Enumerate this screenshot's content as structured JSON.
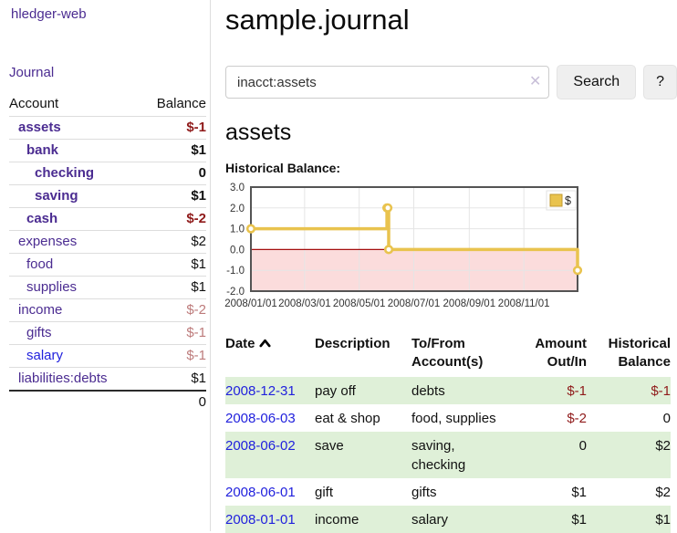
{
  "app": {
    "title": "hledger-web"
  },
  "sidebar": {
    "nav": [
      {
        "label": "Journal"
      }
    ],
    "table": {
      "headers": [
        "Account",
        "Balance"
      ],
      "rows": [
        {
          "name": "assets",
          "indent": 0,
          "bold": true,
          "name_color": "purple",
          "balance": "$-1",
          "tone": "neg"
        },
        {
          "name": "bank",
          "indent": 1,
          "bold": true,
          "name_color": "purple",
          "balance": "$1",
          "tone": ""
        },
        {
          "name": "checking",
          "indent": 2,
          "bold": true,
          "name_color": "purple",
          "balance": "0",
          "tone": ""
        },
        {
          "name": "saving",
          "indent": 2,
          "bold": true,
          "name_color": "purple",
          "balance": "$1",
          "tone": ""
        },
        {
          "name": "cash",
          "indent": 1,
          "bold": true,
          "name_color": "purple",
          "balance": "$-2",
          "tone": "neg"
        },
        {
          "name": "expenses",
          "indent": 0,
          "bold": false,
          "name_color": "purple",
          "balance": "$2",
          "tone": ""
        },
        {
          "name": "food",
          "indent": 1,
          "bold": false,
          "name_color": "purple",
          "balance": "$1",
          "tone": ""
        },
        {
          "name": "supplies",
          "indent": 1,
          "bold": false,
          "name_color": "purple",
          "balance": "$1",
          "tone": ""
        },
        {
          "name": "income",
          "indent": 0,
          "bold": false,
          "name_color": "purple",
          "balance": "$-2",
          "tone": "neg-faded"
        },
        {
          "name": "gifts",
          "indent": 1,
          "bold": false,
          "name_color": "purple",
          "balance": "$-1",
          "tone": "neg-faded"
        },
        {
          "name": "salary",
          "indent": 1,
          "bold": false,
          "name_color": "blue",
          "balance": "$-1",
          "tone": "neg-faded"
        },
        {
          "name": "liabilities:debts",
          "indent": 0,
          "bold": false,
          "name_color": "purple",
          "balance": "$1",
          "tone": ""
        }
      ],
      "total": "0"
    }
  },
  "main": {
    "title": "sample.journal",
    "search": {
      "value": "inacct:assets",
      "clear_icon": "✕",
      "button": "Search",
      "help_button": "?"
    },
    "section_title": "assets",
    "chart_label": "Historical Balance:"
  },
  "chart_data": {
    "type": "line",
    "title": "Historical Balance",
    "step": true,
    "series": [
      {
        "name": "$",
        "points": [
          [
            "2008-01-01",
            1
          ],
          [
            "2008-06-01",
            2
          ],
          [
            "2008-06-02",
            2
          ],
          [
            "2008-06-03",
            0
          ],
          [
            "2008-12-31",
            -1
          ]
        ]
      }
    ],
    "x_ticks": [
      "2008/01/01",
      "2008/03/01",
      "2008/05/01",
      "2008/07/01",
      "2008/09/01",
      "2008/11/01"
    ],
    "y_ticks": [
      "3.0",
      "2.0",
      "1.0",
      "0.0",
      "-1.0",
      "-2.0"
    ],
    "xlim": [
      "2008-01-01",
      "2008-12-31"
    ],
    "ylim": [
      -2,
      3
    ],
    "grid": true,
    "legend": {
      "label": "$",
      "position": "top-right"
    },
    "negative_region_shaded": true
  },
  "register_table": {
    "headers": [
      "Date",
      "Description",
      "To/From Account(s)",
      "Amount Out/In",
      "Historical Balance"
    ],
    "sort": {
      "column": "Date",
      "direction": "ascending"
    },
    "rows": [
      {
        "date": "2008-12-31",
        "description": "pay off",
        "accounts": "debts",
        "amount": "$-1",
        "balance": "$-1"
      },
      {
        "date": "2008-06-03",
        "description": "eat & shop",
        "accounts": "food, supplies",
        "amount": "$-2",
        "balance": "0"
      },
      {
        "date": "2008-06-02",
        "description": "save",
        "accounts": "saving, checking",
        "amount": "0",
        "balance": "$2"
      },
      {
        "date": "2008-06-01",
        "description": "gift",
        "accounts": "gifts",
        "amount": "$1",
        "balance": "$2"
      },
      {
        "date": "2008-01-01",
        "description": "income",
        "accounts": "salary",
        "amount": "$1",
        "balance": "$1"
      }
    ]
  },
  "colors": {
    "purple_link": "#4b2c91",
    "blue_link": "#2121dd",
    "negative": "#8f1a1a",
    "negative_faded": "#bd7b7b",
    "row_green": "#dff0d8",
    "chart_line": "#e9c34e",
    "chart_line_border": "#c19a2e",
    "chart_negative_fill": "#fbdcdc",
    "chart_zero_line": "#a50f0f",
    "chart_border": "#545454",
    "grid_line": "#e5e5e5",
    "divider": "#dddddd",
    "button_bg": "#efefef",
    "input_border": "#cccccc",
    "clear_icon": "#c8bfd8",
    "tick_text": "#333333"
  }
}
